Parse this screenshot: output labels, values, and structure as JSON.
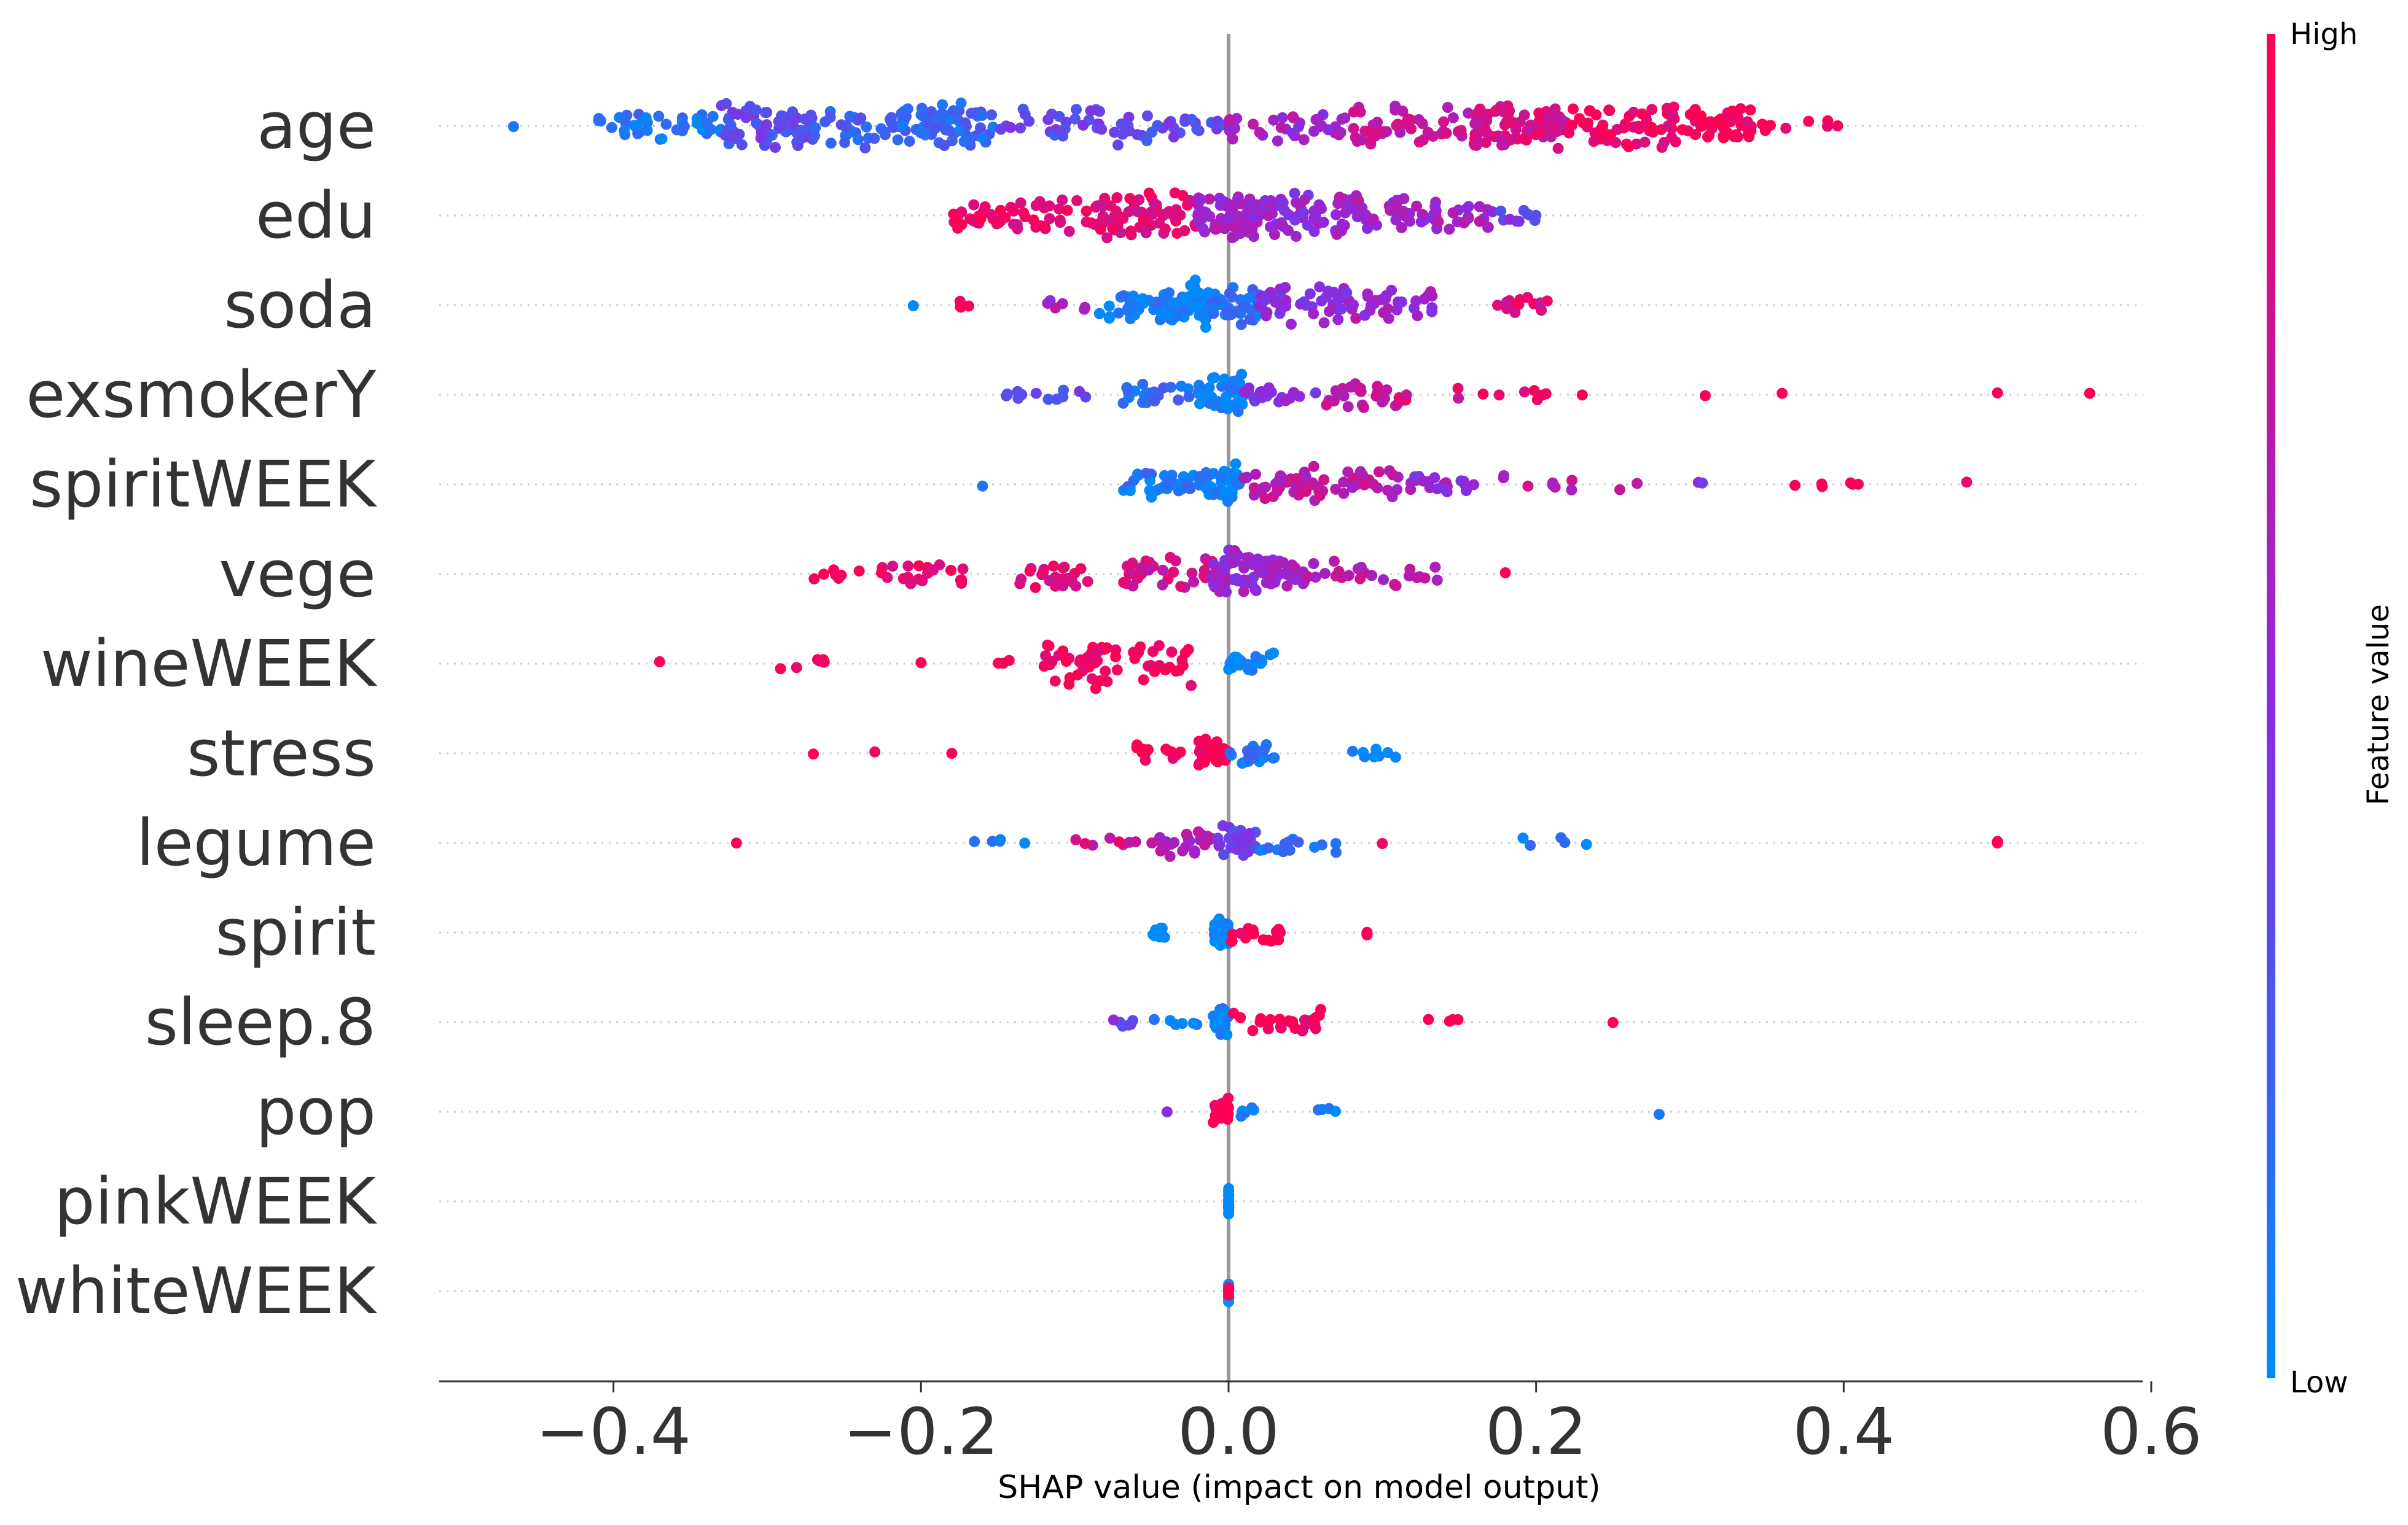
{
  "chart_data": {
    "type": "scatter",
    "subtype": "shap-beeswarm",
    "title": "",
    "xlabel": "SHAP value (impact on model output)",
    "ylabel": "",
    "xlim": [
      -0.52,
      0.6
    ],
    "xticks": [
      -0.4,
      -0.2,
      0.0,
      0.2,
      0.4,
      0.6
    ],
    "xtick_labels": [
      "−0.4",
      "−0.2",
      "0.0",
      "0.2",
      "0.4",
      "0.6"
    ],
    "reference_line_x": 0.0,
    "colorbar": {
      "label": "Feature value",
      "high_label": "High",
      "low_label": "Low",
      "high_color": "#ff0052",
      "mid_color": "#8a2be2",
      "low_color": "#008bfb"
    },
    "features": [
      {
        "name": "age",
        "clusters": [
          [
            -0.47,
            -0.46,
            1,
            0.05
          ],
          [
            -0.41,
            -0.33,
            40,
            0.12
          ],
          [
            -0.33,
            -0.27,
            70,
            0.35
          ],
          [
            -0.27,
            -0.2,
            45,
            0.2
          ],
          [
            -0.2,
            -0.15,
            55,
            0.2
          ],
          [
            -0.15,
            -0.05,
            40,
            0.35
          ],
          [
            -0.05,
            0.0,
            20,
            0.35
          ],
          [
            0.0,
            0.08,
            35,
            0.6
          ],
          [
            0.08,
            0.16,
            45,
            0.75
          ],
          [
            0.16,
            0.22,
            85,
            0.8
          ],
          [
            0.22,
            0.3,
            60,
            0.95
          ],
          [
            0.3,
            0.34,
            45,
            1.0
          ],
          [
            0.34,
            0.4,
            8,
            1.0
          ]
        ]
      },
      {
        "name": "edu",
        "clusters": [
          [
            -0.18,
            -0.14,
            25,
            0.95
          ],
          [
            -0.14,
            -0.08,
            40,
            0.85
          ],
          [
            -0.08,
            -0.02,
            55,
            0.85
          ],
          [
            -0.02,
            0.01,
            50,
            0.6
          ],
          [
            0.01,
            0.06,
            60,
            0.55
          ],
          [
            0.06,
            0.12,
            45,
            0.6
          ],
          [
            0.12,
            0.17,
            30,
            0.6
          ],
          [
            0.17,
            0.2,
            12,
            0.4
          ]
        ]
      },
      {
        "name": "soda",
        "clusters": [
          [
            -0.21,
            -0.2,
            1,
            0.0
          ],
          [
            -0.18,
            -0.16,
            4,
            1.0
          ],
          [
            -0.12,
            -0.09,
            6,
            0.6
          ],
          [
            -0.09,
            -0.04,
            30,
            0.1
          ],
          [
            -0.04,
            -0.01,
            55,
            0.05
          ],
          [
            -0.01,
            0.02,
            40,
            0.15
          ],
          [
            0.02,
            0.08,
            45,
            0.5
          ],
          [
            0.08,
            0.14,
            30,
            0.6
          ],
          [
            0.17,
            0.21,
            14,
            0.85
          ]
        ]
      },
      {
        "name": "exsmokerY",
        "clusters": [
          [
            -0.15,
            -0.08,
            14,
            0.35
          ],
          [
            -0.07,
            -0.02,
            20,
            0.15
          ],
          [
            -0.02,
            0.01,
            45,
            0.05
          ],
          [
            0.01,
            0.06,
            20,
            0.45
          ],
          [
            0.06,
            0.11,
            25,
            0.75
          ],
          [
            0.11,
            0.21,
            14,
            0.85
          ],
          [
            0.23,
            0.23,
            1,
            1.0
          ],
          [
            0.31,
            0.31,
            1,
            1.0
          ],
          [
            0.36,
            0.36,
            1,
            1.0
          ],
          [
            0.5,
            0.5,
            1,
            1.0
          ],
          [
            0.56,
            0.56,
            1,
            1.0
          ]
        ]
      },
      {
        "name": "spiritWEEK",
        "clusters": [
          [
            -0.16,
            -0.16,
            1,
            0.1
          ],
          [
            -0.07,
            -0.02,
            30,
            0.1
          ],
          [
            -0.02,
            0.01,
            45,
            0.05
          ],
          [
            0.01,
            0.05,
            30,
            0.7
          ],
          [
            0.05,
            0.12,
            35,
            0.7
          ],
          [
            0.12,
            0.18,
            20,
            0.55
          ],
          [
            0.18,
            0.27,
            8,
            0.7
          ],
          [
            0.3,
            0.31,
            2,
            0.45
          ],
          [
            0.35,
            0.41,
            6,
            1.0
          ],
          [
            0.48,
            0.48,
            1,
            1.0
          ]
        ]
      },
      {
        "name": "vege",
        "clusters": [
          [
            -0.27,
            -0.24,
            8,
            1.0
          ],
          [
            -0.23,
            -0.17,
            20,
            0.9
          ],
          [
            -0.14,
            -0.09,
            25,
            0.85
          ],
          [
            -0.07,
            -0.01,
            35,
            0.8
          ],
          [
            -0.01,
            0.02,
            50,
            0.55
          ],
          [
            0.02,
            0.05,
            35,
            0.6
          ],
          [
            0.05,
            0.14,
            25,
            0.7
          ],
          [
            0.18,
            0.18,
            1,
            1.0
          ]
        ]
      },
      {
        "name": "wineWEEK",
        "clusters": [
          [
            -0.37,
            -0.37,
            1,
            1.0
          ],
          [
            -0.3,
            -0.25,
            6,
            1.0
          ],
          [
            -0.2,
            -0.2,
            1,
            1.0
          ],
          [
            -0.15,
            -0.14,
            3,
            1.0
          ],
          [
            -0.12,
            -0.02,
            60,
            0.97
          ],
          [
            0.0,
            0.03,
            25,
            0.05
          ]
        ]
      },
      {
        "name": "stress",
        "clusters": [
          [
            -0.27,
            -0.27,
            1,
            1.0
          ],
          [
            -0.23,
            -0.23,
            1,
            1.0
          ],
          [
            -0.18,
            -0.18,
            1,
            1.0
          ],
          [
            -0.06,
            -0.03,
            15,
            1.0
          ],
          [
            -0.02,
            0.0,
            30,
            1.0
          ],
          [
            0.0,
            0.03,
            20,
            0.1
          ],
          [
            0.08,
            0.11,
            8,
            0.05
          ]
        ]
      },
      {
        "name": "legume",
        "clusters": [
          [
            -0.32,
            -0.32,
            1,
            1.0
          ],
          [
            -0.17,
            -0.13,
            6,
            0.1
          ],
          [
            -0.1,
            -0.06,
            8,
            0.8
          ],
          [
            -0.05,
            -0.01,
            25,
            0.65
          ],
          [
            -0.01,
            0.02,
            35,
            0.4
          ],
          [
            0.02,
            0.07,
            15,
            0.15
          ],
          [
            0.1,
            0.1,
            1,
            1.0
          ],
          [
            0.19,
            0.24,
            5,
            0.05
          ],
          [
            0.5,
            0.5,
            2,
            1.0
          ]
        ]
      },
      {
        "name": "spirit",
        "clusters": [
          [
            -0.05,
            -0.04,
            8,
            0.0
          ],
          [
            -0.01,
            0.0,
            30,
            0.0
          ],
          [
            0.0,
            0.04,
            20,
            1.0
          ],
          [
            0.09,
            0.09,
            3,
            1.0
          ]
        ]
      },
      {
        "name": "sleep.8",
        "clusters": [
          [
            -0.08,
            -0.06,
            6,
            0.4
          ],
          [
            -0.05,
            -0.02,
            6,
            0.05
          ],
          [
            -0.01,
            0.0,
            30,
            0.05
          ],
          [
            0.0,
            0.06,
            25,
            1.0
          ],
          [
            0.11,
            0.15,
            4,
            1.0
          ],
          [
            0.25,
            0.25,
            1,
            1.0
          ]
        ]
      },
      {
        "name": "pop",
        "clusters": [
          [
            -0.04,
            -0.04,
            1,
            0.55
          ],
          [
            -0.01,
            0.0,
            25,
            1.0
          ],
          [
            0.0,
            0.02,
            6,
            0.05
          ],
          [
            0.05,
            0.07,
            4,
            0.05
          ],
          [
            0.28,
            0.28,
            1,
            0.05
          ]
        ]
      },
      {
        "name": "pinkWEEK",
        "clusters": [
          [
            0.0,
            0.0,
            25,
            0.0
          ]
        ]
      },
      {
        "name": "whiteWEEK",
        "clusters": [
          [
            0.0,
            0.0,
            22,
            0.0
          ],
          [
            0.0,
            0.0,
            5,
            1.0
          ]
        ]
      }
    ],
    "cluster_format": "[x_start, x_end, point_count, mean_feature_value(0=Low,1=High)]"
  }
}
